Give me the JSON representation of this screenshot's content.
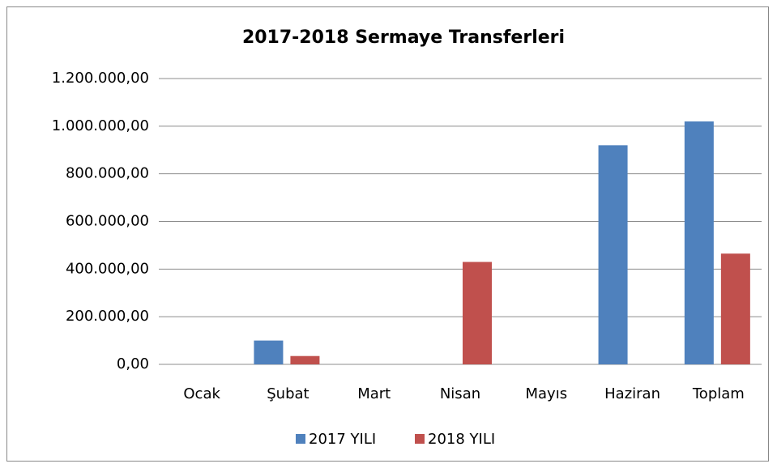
{
  "chart_data": {
    "type": "bar",
    "title": "2017-2018 Sermaye Transferleri",
    "categories": [
      "Ocak",
      "Şubat",
      "Mart",
      "Nisan",
      "Mayıs",
      "Haziran",
      "Toplam"
    ],
    "series": [
      {
        "name": "2017 YILI",
        "color": "#4f81bd",
        "values": [
          null,
          100000,
          null,
          null,
          null,
          920000,
          1020000
        ]
      },
      {
        "name": "2018 YILI",
        "color": "#c0504d",
        "values": [
          null,
          35000,
          null,
          430000,
          null,
          null,
          465000
        ]
      }
    ],
    "ylim": [
      0,
      1200000
    ],
    "yticks": [
      {
        "value": 0,
        "label": "0,00"
      },
      {
        "value": 200000,
        "label": "200.000,00"
      },
      {
        "value": 400000,
        "label": "400.000,00"
      },
      {
        "value": 600000,
        "label": "600.000,00"
      },
      {
        "value": 800000,
        "label": "800.000,00"
      },
      {
        "value": 1000000,
        "label": "1.000.000,00"
      },
      {
        "value": 1200000,
        "label": "1.200.000,00"
      }
    ],
    "grid": true,
    "legend": "bottom"
  }
}
